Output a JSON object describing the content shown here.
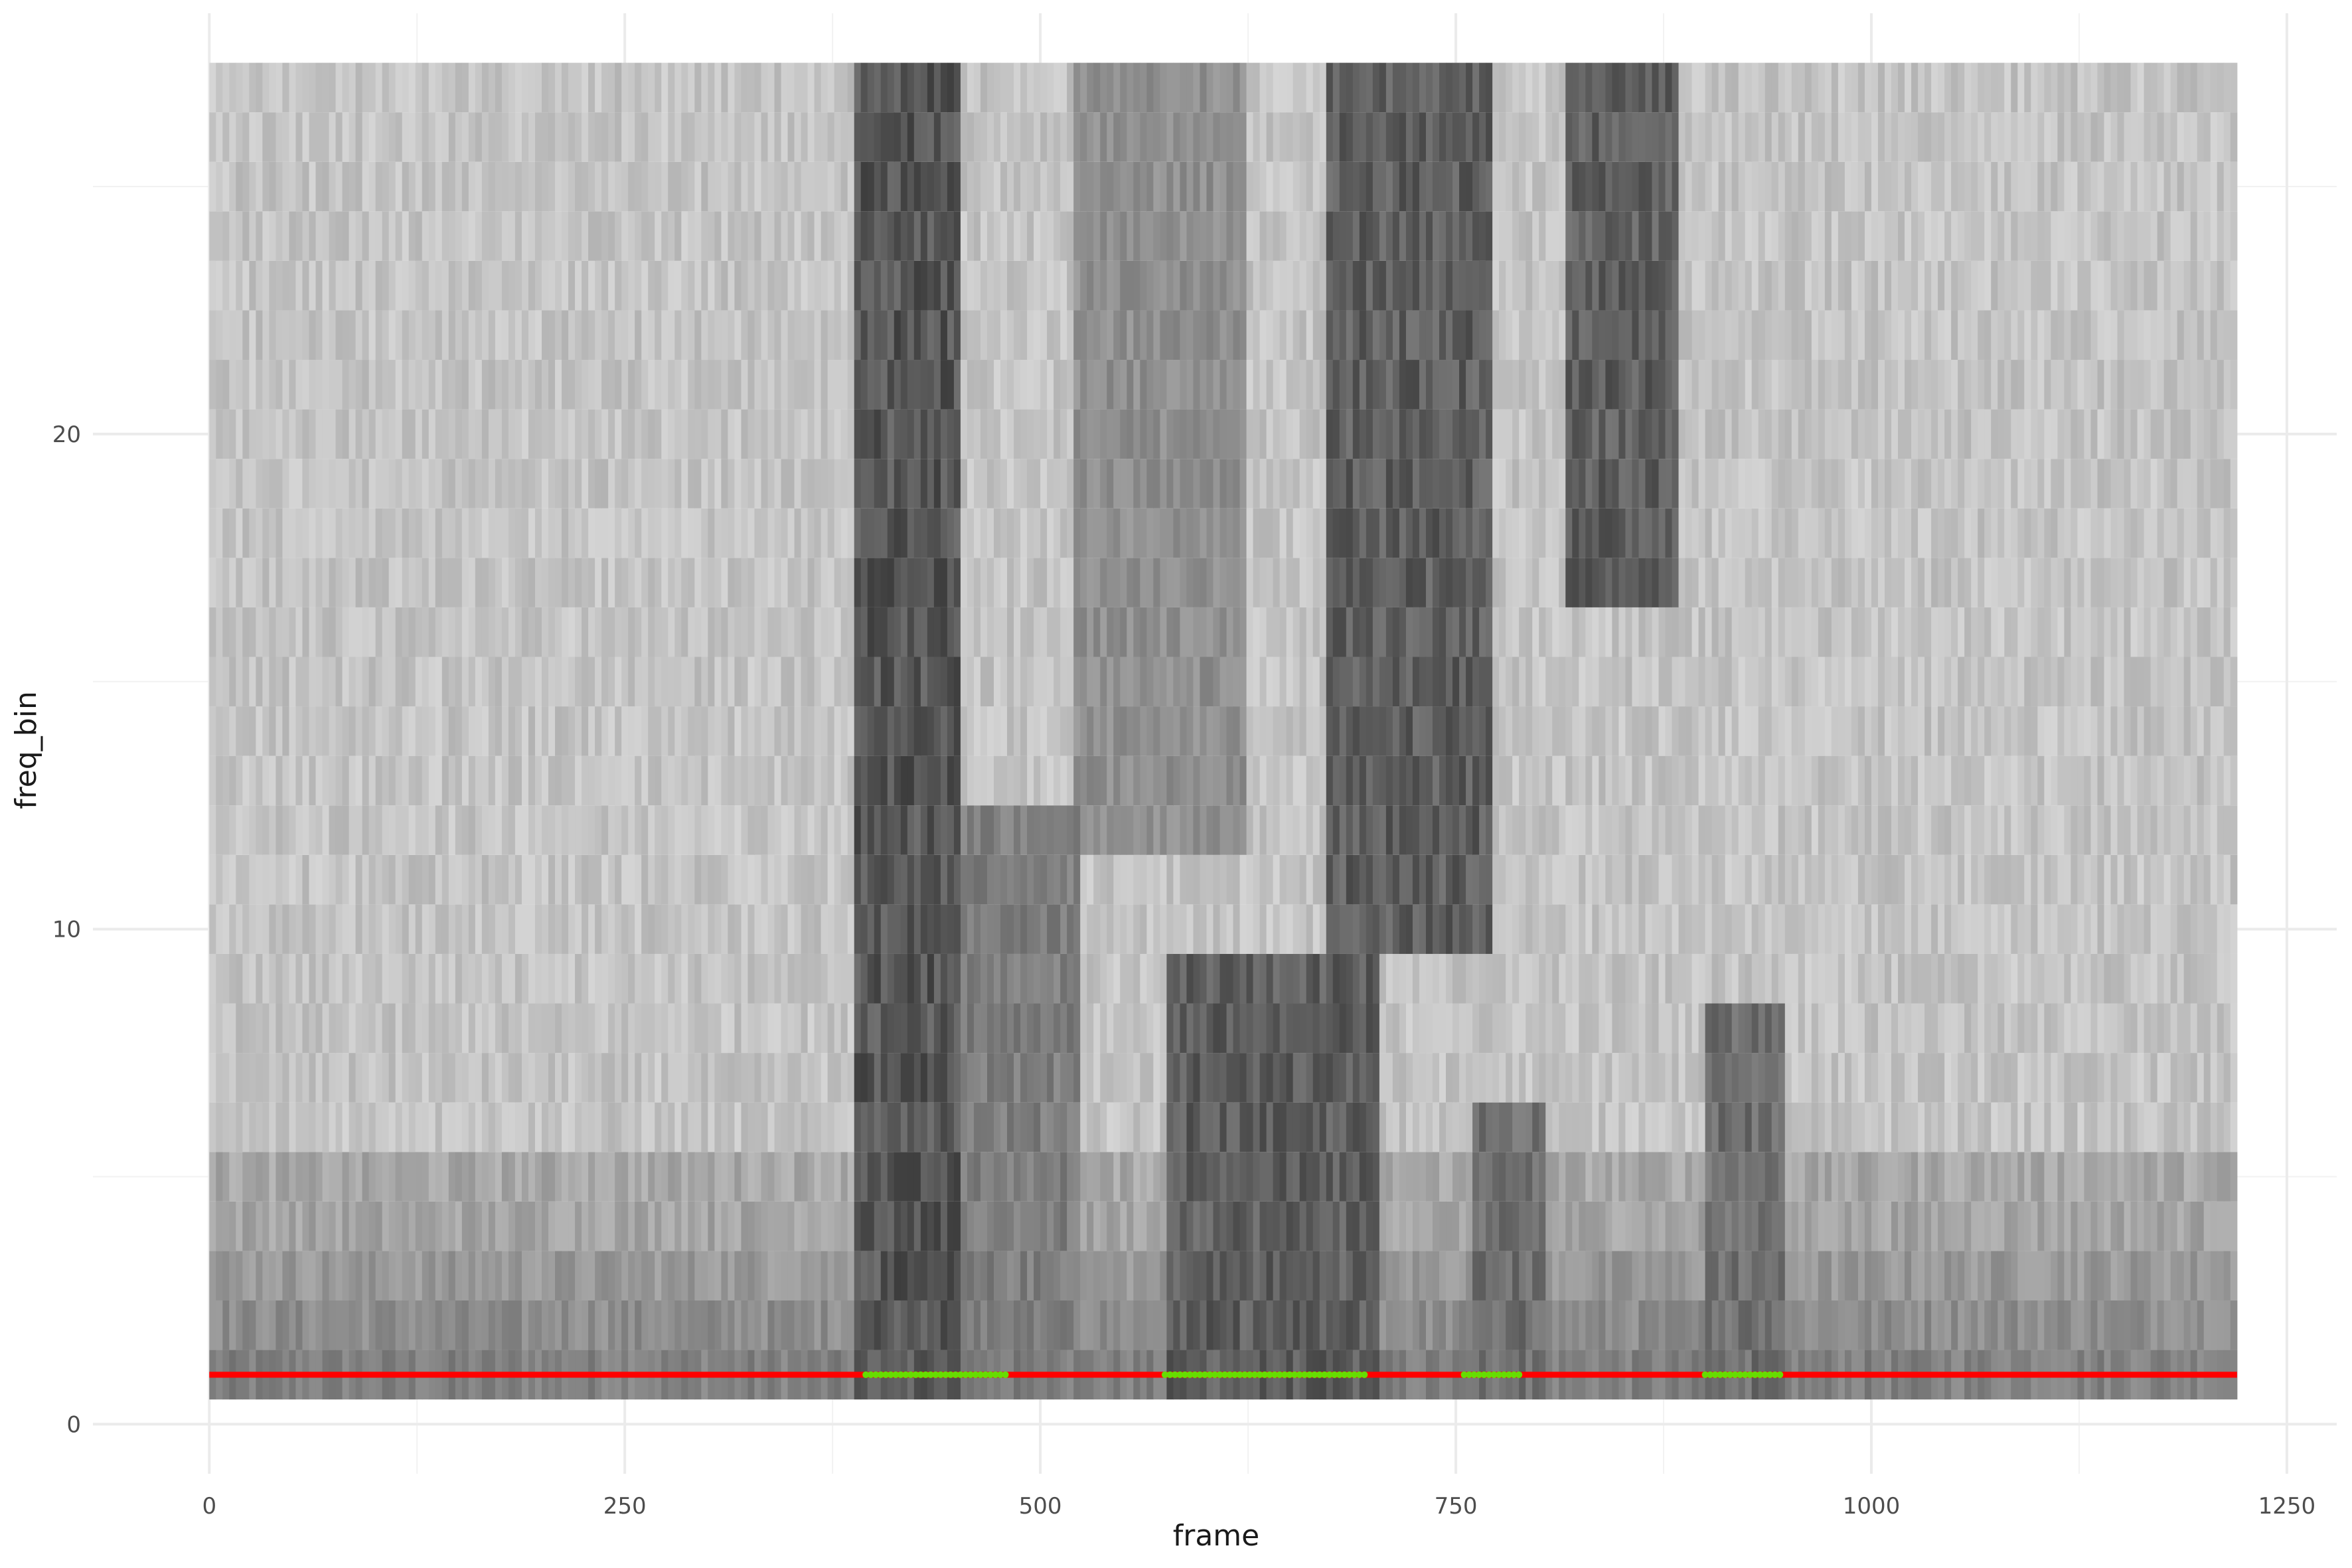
{
  "chart_data": {
    "type": "heatmap",
    "title": "",
    "xlabel": "frame",
    "ylabel": "freq_bin",
    "xlim": [
      -70,
      1280
    ],
    "ylim": [
      -1,
      28.5
    ],
    "x_ticks": [
      0,
      250,
      500,
      750,
      1000,
      1250
    ],
    "x_tick_labels": [
      "0",
      "250",
      "500",
      "750",
      "1000",
      "1250"
    ],
    "y_ticks": [
      0,
      10,
      20
    ],
    "y_tick_labels": [
      "0",
      "10",
      "20"
    ],
    "x_minor": [
      125,
      375,
      625,
      875,
      1125
    ],
    "y_minor": [
      5,
      15,
      25
    ],
    "frames": 1220,
    "freq_bins": [
      1,
      27
    ],
    "grid": true,
    "colors": {
      "low": "#e8e8e8",
      "high": "#2a2a2a",
      "baseline": "#ff0000",
      "voiced": "#66dd00"
    },
    "energy_regions": [
      {
        "x_start": 385,
        "x_end": 450,
        "bins": [
          1,
          27
        ],
        "intensity": 0.9
      },
      {
        "x_start": 450,
        "x_end": 520,
        "bins": [
          1,
          12
        ],
        "intensity": 0.65
      },
      {
        "x_start": 520,
        "x_end": 620,
        "bins": [
          12,
          27
        ],
        "intensity": 0.55
      },
      {
        "x_start": 575,
        "x_end": 700,
        "bins": [
          1,
          9
        ],
        "intensity": 0.85
      },
      {
        "x_start": 670,
        "x_end": 770,
        "bins": [
          10,
          27
        ],
        "intensity": 0.85
      },
      {
        "x_start": 760,
        "x_end": 800,
        "bins": [
          1,
          6
        ],
        "intensity": 0.75
      },
      {
        "x_start": 815,
        "x_end": 880,
        "bins": [
          17,
          27
        ],
        "intensity": 0.85
      },
      {
        "x_start": 900,
        "x_end": 945,
        "bins": [
          1,
          8
        ],
        "intensity": 0.75
      }
    ],
    "baseline": {
      "y": 1,
      "x_start": 0,
      "x_end": 1220
    },
    "voiced_segments": [
      [
        395,
        480
      ],
      [
        575,
        695
      ],
      [
        755,
        790
      ],
      [
        900,
        945
      ]
    ]
  }
}
